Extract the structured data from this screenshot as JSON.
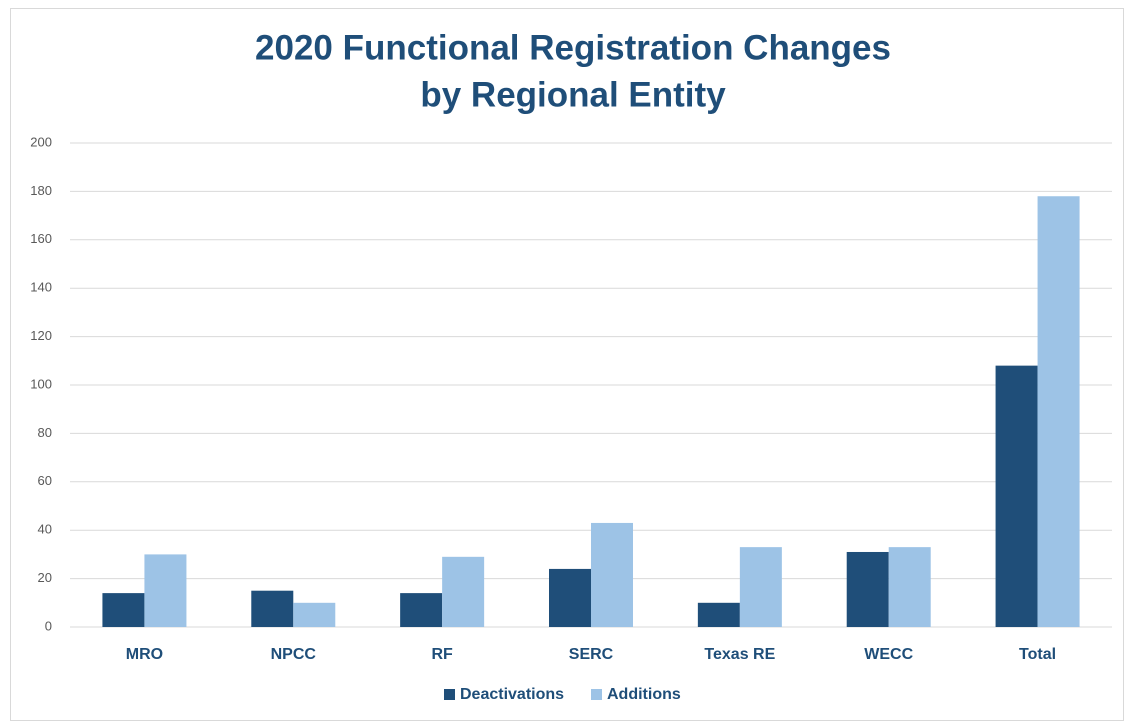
{
  "chart_data": {
    "type": "bar",
    "title": [
      "2020 Functional Registration Changes",
      "by Regional Entity"
    ],
    "categories": [
      "MRO",
      "NPCC",
      "RF",
      "SERC",
      "Texas RE",
      "WECC",
      "Total"
    ],
    "series": [
      {
        "name": "Deactivations",
        "color": "#1f4e79",
        "values": [
          14,
          15,
          14,
          24,
          10,
          31,
          108
        ]
      },
      {
        "name": "Additions",
        "color": "#9dc3e6",
        "values": [
          30,
          10,
          29,
          43,
          33,
          33,
          178
        ]
      }
    ],
    "ylim": [
      0,
      200
    ],
    "yticks": [
      0,
      20,
      40,
      60,
      80,
      100,
      120,
      140,
      160,
      180,
      200
    ],
    "grid": true,
    "legend": "bottom"
  }
}
